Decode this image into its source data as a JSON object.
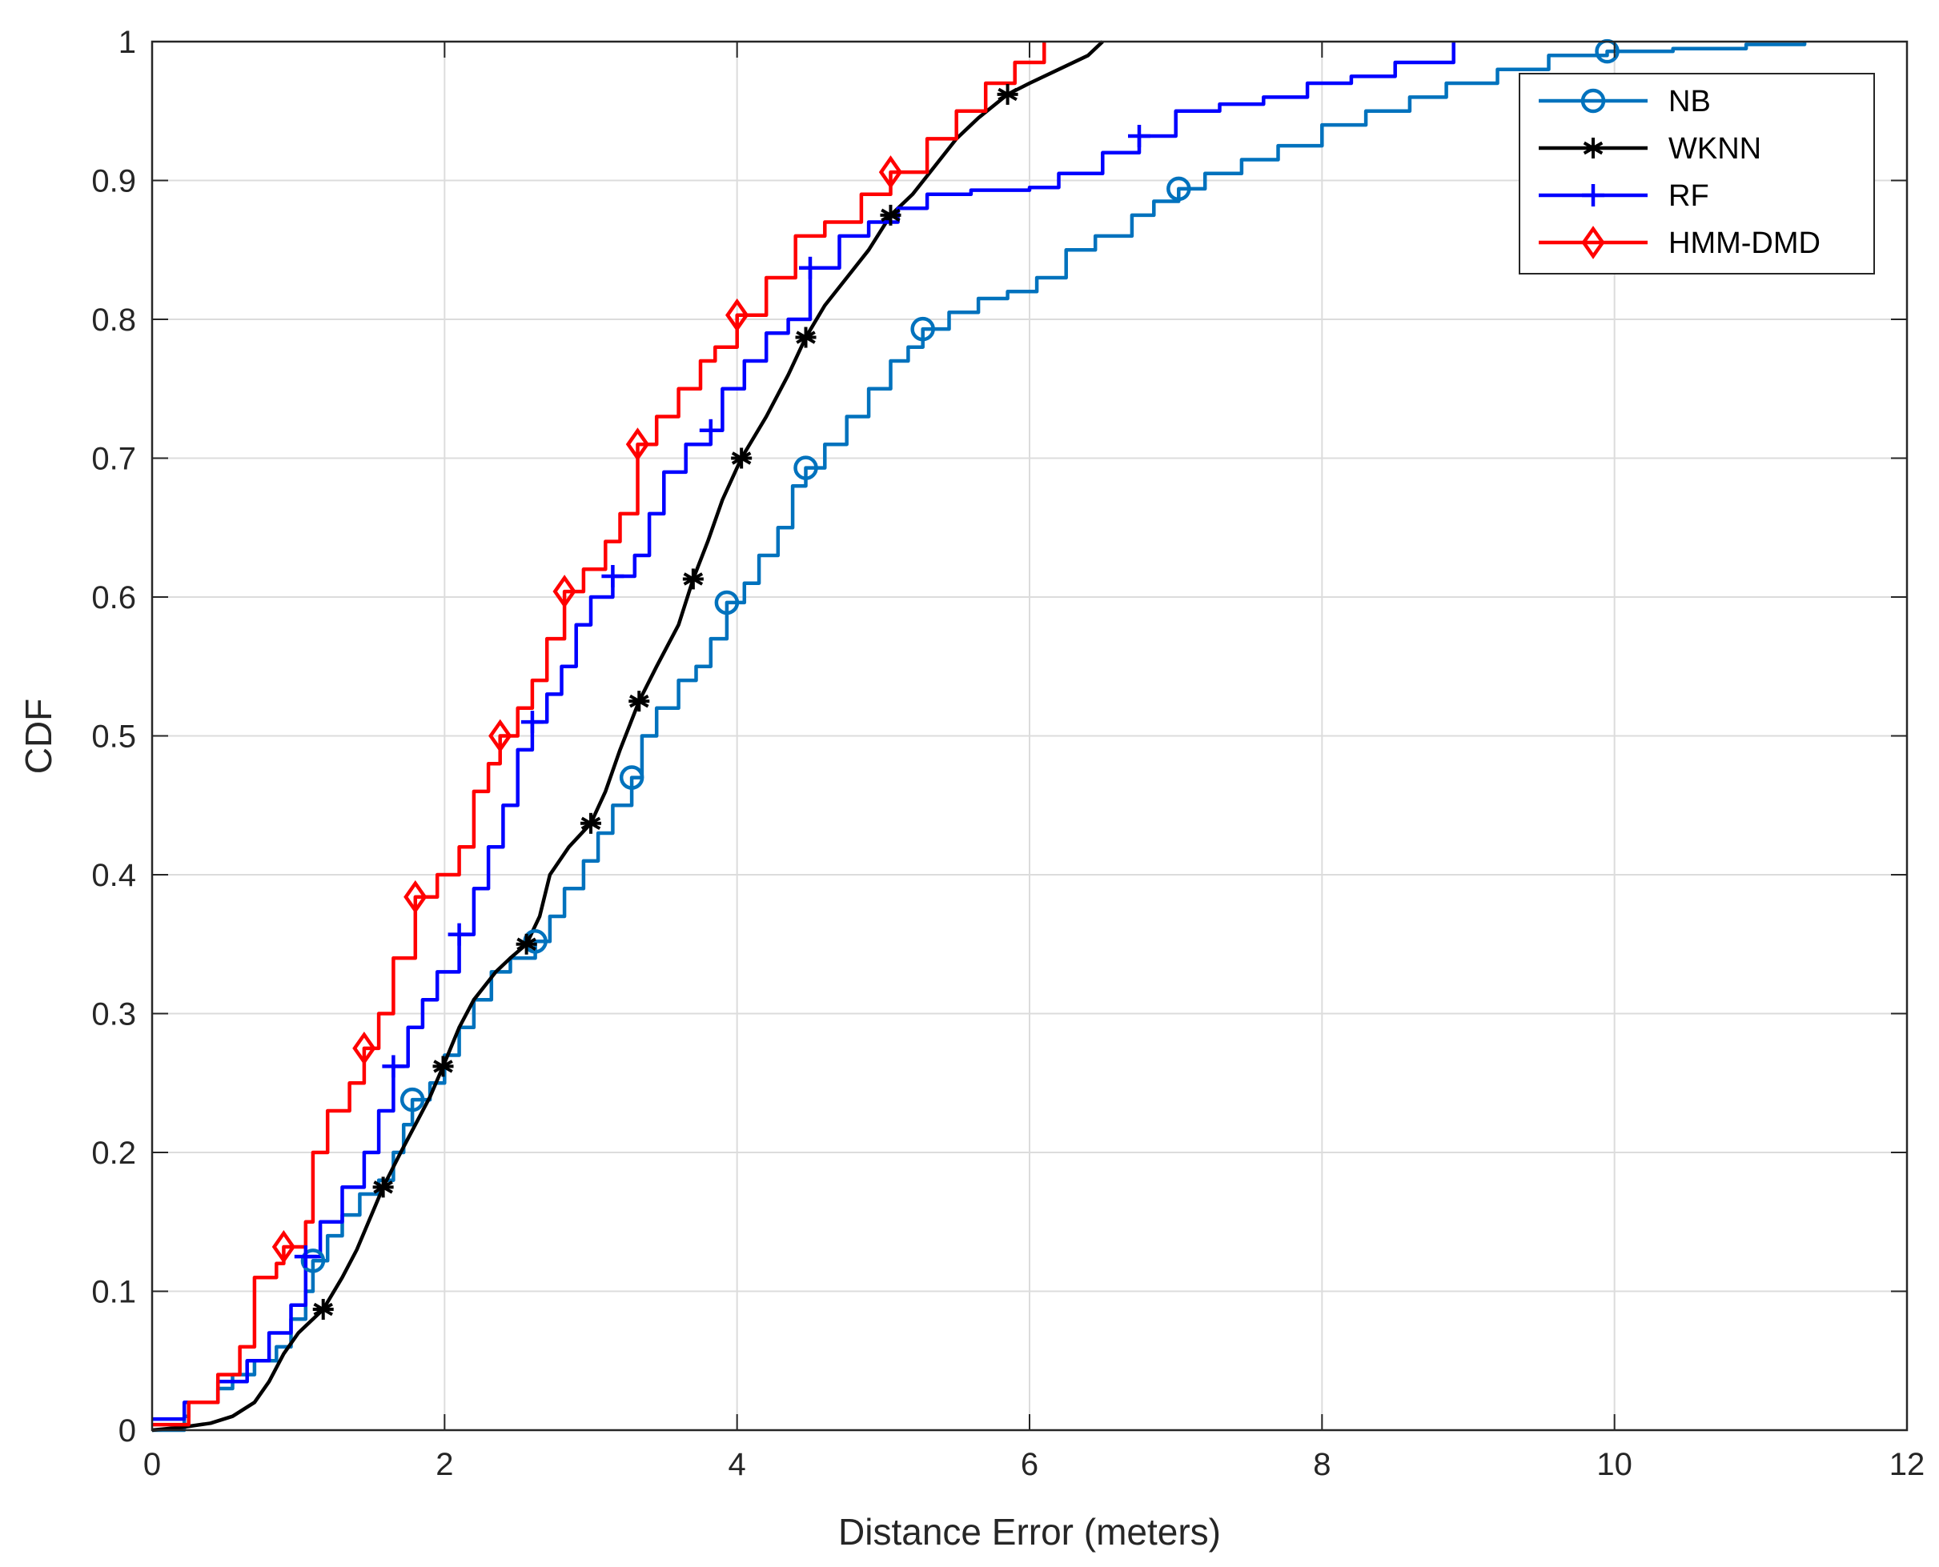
{
  "chart_data": {
    "type": "line",
    "title": "",
    "xlabel": "Distance Error (meters)",
    "ylabel": "CDF",
    "xlim": [
      0,
      12
    ],
    "ylim": [
      0,
      1
    ],
    "xticks": [
      0,
      2,
      4,
      6,
      8,
      10,
      12
    ],
    "yticks": [
      0,
      0.1,
      0.2,
      0.3,
      0.4,
      0.5,
      0.6,
      0.7,
      0.8,
      0.9,
      1
    ],
    "xtick_labels": [
      "0",
      "2",
      "4",
      "6",
      "8",
      "10",
      "12"
    ],
    "ytick_labels": [
      "0",
      "0.1",
      "0.2",
      "0.3",
      "0.4",
      "0.5",
      "0.6",
      "0.7",
      "0.8",
      "0.9",
      "1"
    ],
    "grid": true,
    "legend_position": "top-right",
    "series": [
      {
        "name": "NB",
        "color": "#0072BD",
        "marker": "circle",
        "markers": [
          [
            1.1,
            0.122
          ],
          [
            1.78,
            0.238
          ],
          [
            2.62,
            0.352
          ],
          [
            3.28,
            0.47
          ],
          [
            3.93,
            0.596
          ],
          [
            4.47,
            0.693
          ],
          [
            5.27,
            0.793
          ],
          [
            7.02,
            0.894
          ],
          [
            9.95,
            0.993
          ]
        ],
        "points": [
          [
            0,
            0
          ],
          [
            0.22,
            0.01
          ],
          [
            0.25,
            0.02
          ],
          [
            0.45,
            0.03
          ],
          [
            0.55,
            0.04
          ],
          [
            0.7,
            0.05
          ],
          [
            0.85,
            0.06
          ],
          [
            0.95,
            0.08
          ],
          [
            1.05,
            0.1
          ],
          [
            1.1,
            0.122
          ],
          [
            1.2,
            0.14
          ],
          [
            1.3,
            0.155
          ],
          [
            1.42,
            0.17
          ],
          [
            1.55,
            0.18
          ],
          [
            1.65,
            0.2
          ],
          [
            1.72,
            0.22
          ],
          [
            1.78,
            0.238
          ],
          [
            1.9,
            0.25
          ],
          [
            2.0,
            0.27
          ],
          [
            2.1,
            0.29
          ],
          [
            2.2,
            0.31
          ],
          [
            2.32,
            0.33
          ],
          [
            2.45,
            0.34
          ],
          [
            2.62,
            0.352
          ],
          [
            2.72,
            0.37
          ],
          [
            2.82,
            0.39
          ],
          [
            2.95,
            0.41
          ],
          [
            3.05,
            0.43
          ],
          [
            3.15,
            0.45
          ],
          [
            3.28,
            0.47
          ],
          [
            3.35,
            0.5
          ],
          [
            3.45,
            0.52
          ],
          [
            3.6,
            0.54
          ],
          [
            3.72,
            0.55
          ],
          [
            3.82,
            0.57
          ],
          [
            3.93,
            0.596
          ],
          [
            4.05,
            0.61
          ],
          [
            4.15,
            0.63
          ],
          [
            4.28,
            0.65
          ],
          [
            4.38,
            0.68
          ],
          [
            4.47,
            0.693
          ],
          [
            4.6,
            0.71
          ],
          [
            4.75,
            0.73
          ],
          [
            4.9,
            0.75
          ],
          [
            5.05,
            0.77
          ],
          [
            5.17,
            0.78
          ],
          [
            5.27,
            0.793
          ],
          [
            5.45,
            0.805
          ],
          [
            5.65,
            0.815
          ],
          [
            5.85,
            0.82
          ],
          [
            6.05,
            0.83
          ],
          [
            6.25,
            0.85
          ],
          [
            6.45,
            0.86
          ],
          [
            6.7,
            0.875
          ],
          [
            6.85,
            0.885
          ],
          [
            7.02,
            0.894
          ],
          [
            7.2,
            0.905
          ],
          [
            7.45,
            0.915
          ],
          [
            7.7,
            0.925
          ],
          [
            8.0,
            0.94
          ],
          [
            8.3,
            0.95
          ],
          [
            8.6,
            0.96
          ],
          [
            8.85,
            0.97
          ],
          [
            9.2,
            0.98
          ],
          [
            9.55,
            0.99
          ],
          [
            9.95,
            0.993
          ],
          [
            10.4,
            0.995
          ],
          [
            10.9,
            0.998
          ],
          [
            11.3,
            1.0
          ]
        ]
      },
      {
        "name": "WKNN",
        "color": "#000000",
        "marker": "asterisk",
        "markers": [
          [
            1.17,
            0.087
          ],
          [
            1.58,
            0.175
          ],
          [
            1.99,
            0.262
          ],
          [
            2.56,
            0.35
          ],
          [
            3.0,
            0.437
          ],
          [
            3.33,
            0.525
          ],
          [
            3.7,
            0.613
          ],
          [
            4.03,
            0.7
          ],
          [
            4.47,
            0.787
          ],
          [
            5.05,
            0.875
          ],
          [
            5.85,
            0.962
          ]
        ],
        "points": [
          [
            0,
            0
          ],
          [
            0.2,
            0.002
          ],
          [
            0.4,
            0.005
          ],
          [
            0.55,
            0.01
          ],
          [
            0.7,
            0.02
          ],
          [
            0.8,
            0.035
          ],
          [
            0.9,
            0.055
          ],
          [
            1.0,
            0.07
          ],
          [
            1.1,
            0.08
          ],
          [
            1.17,
            0.087
          ],
          [
            1.3,
            0.11
          ],
          [
            1.4,
            0.13
          ],
          [
            1.5,
            0.155
          ],
          [
            1.58,
            0.175
          ],
          [
            1.7,
            0.2
          ],
          [
            1.8,
            0.22
          ],
          [
            1.9,
            0.24
          ],
          [
            1.99,
            0.262
          ],
          [
            2.1,
            0.29
          ],
          [
            2.2,
            0.31
          ],
          [
            2.35,
            0.33
          ],
          [
            2.45,
            0.34
          ],
          [
            2.56,
            0.35
          ],
          [
            2.65,
            0.37
          ],
          [
            2.72,
            0.4
          ],
          [
            2.85,
            0.42
          ],
          [
            3.0,
            0.437
          ],
          [
            3.1,
            0.46
          ],
          [
            3.2,
            0.49
          ],
          [
            3.33,
            0.525
          ],
          [
            3.45,
            0.55
          ],
          [
            3.6,
            0.58
          ],
          [
            3.7,
            0.613
          ],
          [
            3.8,
            0.64
          ],
          [
            3.9,
            0.67
          ],
          [
            4.03,
            0.7
          ],
          [
            4.2,
            0.73
          ],
          [
            4.35,
            0.76
          ],
          [
            4.47,
            0.787
          ],
          [
            4.6,
            0.81
          ],
          [
            4.75,
            0.83
          ],
          [
            4.9,
            0.85
          ],
          [
            5.05,
            0.875
          ],
          [
            5.2,
            0.89
          ],
          [
            5.35,
            0.91
          ],
          [
            5.5,
            0.93
          ],
          [
            5.65,
            0.945
          ],
          [
            5.85,
            0.962
          ],
          [
            6.0,
            0.97
          ],
          [
            6.2,
            0.98
          ],
          [
            6.4,
            0.99
          ],
          [
            6.5,
            1.0
          ]
        ]
      },
      {
        "name": "RF",
        "color": "#0000FF",
        "marker": "plus",
        "markers": [
          [
            1.05,
            0.125
          ],
          [
            1.65,
            0.262
          ],
          [
            2.1,
            0.357
          ],
          [
            2.6,
            0.51
          ],
          [
            3.15,
            0.615
          ],
          [
            3.82,
            0.72
          ],
          [
            4.5,
            0.837
          ],
          [
            6.75,
            0.932
          ]
        ],
        "points": [
          [
            0,
            0.008
          ],
          [
            0.22,
            0.02
          ],
          [
            0.45,
            0.035
          ],
          [
            0.65,
            0.05
          ],
          [
            0.8,
            0.07
          ],
          [
            0.95,
            0.09
          ],
          [
            1.05,
            0.125
          ],
          [
            1.15,
            0.15
          ],
          [
            1.3,
            0.175
          ],
          [
            1.45,
            0.2
          ],
          [
            1.55,
            0.23
          ],
          [
            1.65,
            0.262
          ],
          [
            1.75,
            0.29
          ],
          [
            1.85,
            0.31
          ],
          [
            1.95,
            0.33
          ],
          [
            2.1,
            0.357
          ],
          [
            2.2,
            0.39
          ],
          [
            2.3,
            0.42
          ],
          [
            2.4,
            0.45
          ],
          [
            2.5,
            0.49
          ],
          [
            2.6,
            0.51
          ],
          [
            2.7,
            0.53
          ],
          [
            2.8,
            0.55
          ],
          [
            2.9,
            0.58
          ],
          [
            3.0,
            0.6
          ],
          [
            3.15,
            0.615
          ],
          [
            3.3,
            0.63
          ],
          [
            3.4,
            0.66
          ],
          [
            3.5,
            0.69
          ],
          [
            3.65,
            0.71
          ],
          [
            3.82,
            0.72
          ],
          [
            3.9,
            0.75
          ],
          [
            4.05,
            0.77
          ],
          [
            4.2,
            0.79
          ],
          [
            4.35,
            0.8
          ],
          [
            4.5,
            0.837
          ],
          [
            4.7,
            0.86
          ],
          [
            4.9,
            0.87
          ],
          [
            5.1,
            0.88
          ],
          [
            5.3,
            0.89
          ],
          [
            5.6,
            0.893
          ],
          [
            6.0,
            0.895
          ],
          [
            6.2,
            0.905
          ],
          [
            6.5,
            0.92
          ],
          [
            6.75,
            0.932
          ],
          [
            7.0,
            0.95
          ],
          [
            7.3,
            0.955
          ],
          [
            7.6,
            0.96
          ],
          [
            7.9,
            0.97
          ],
          [
            8.2,
            0.975
          ],
          [
            8.5,
            0.985
          ],
          [
            8.9,
            1.0
          ]
        ]
      },
      {
        "name": "HMM-DMD",
        "color": "#FF0000",
        "marker": "diamond",
        "markers": [
          [
            0.9,
            0.132
          ],
          [
            1.45,
            0.275
          ],
          [
            1.8,
            0.384
          ],
          [
            2.38,
            0.5
          ],
          [
            2.82,
            0.604
          ],
          [
            3.32,
            0.71
          ],
          [
            4.0,
            0.803
          ],
          [
            5.05,
            0.906
          ]
        ],
        "points": [
          [
            0,
            0.004
          ],
          [
            0.25,
            0.02
          ],
          [
            0.45,
            0.04
          ],
          [
            0.6,
            0.06
          ],
          [
            0.7,
            0.11
          ],
          [
            0.85,
            0.12
          ],
          [
            0.9,
            0.132
          ],
          [
            1.05,
            0.15
          ],
          [
            1.1,
            0.2
          ],
          [
            1.2,
            0.23
          ],
          [
            1.35,
            0.25
          ],
          [
            1.45,
            0.275
          ],
          [
            1.55,
            0.3
          ],
          [
            1.65,
            0.34
          ],
          [
            1.8,
            0.384
          ],
          [
            1.95,
            0.4
          ],
          [
            2.1,
            0.42
          ],
          [
            2.2,
            0.46
          ],
          [
            2.3,
            0.48
          ],
          [
            2.38,
            0.5
          ],
          [
            2.5,
            0.52
          ],
          [
            2.6,
            0.54
          ],
          [
            2.7,
            0.57
          ],
          [
            2.82,
            0.604
          ],
          [
            2.95,
            0.62
          ],
          [
            3.1,
            0.64
          ],
          [
            3.2,
            0.66
          ],
          [
            3.32,
            0.71
          ],
          [
            3.45,
            0.73
          ],
          [
            3.6,
            0.75
          ],
          [
            3.75,
            0.77
          ],
          [
            3.85,
            0.78
          ],
          [
            4.0,
            0.803
          ],
          [
            4.2,
            0.83
          ],
          [
            4.4,
            0.86
          ],
          [
            4.6,
            0.87
          ],
          [
            4.85,
            0.89
          ],
          [
            5.05,
            0.906
          ],
          [
            5.3,
            0.93
          ],
          [
            5.5,
            0.95
          ],
          [
            5.7,
            0.97
          ],
          [
            5.9,
            0.985
          ],
          [
            6.1,
            1.0
          ]
        ]
      }
    ]
  }
}
